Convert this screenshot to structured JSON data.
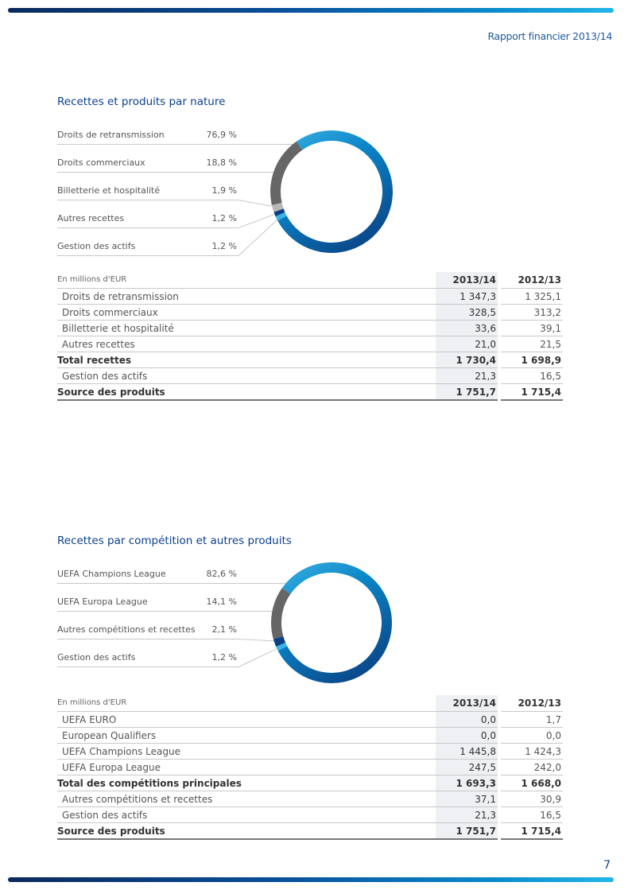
{
  "header": {
    "title": "Rapport financier 2013/14"
  },
  "page_number": "7",
  "colors": {
    "blue_light": "#3ab0e2",
    "blue_dark": "#0a4a8c",
    "grey_dark": "#666666",
    "grey_light": "#b8b8b8",
    "navy": "#0a3f85",
    "cyan": "#3ab4e6"
  },
  "section1": {
    "title": "Recettes et produits par nature",
    "chart": {
      "type": "pie",
      "style": "donut",
      "labels": [
        "Droits de retransmission",
        "Droits commerciaux",
        "Billetterie et hospitalité",
        "Autres recettes",
        "Gestion des actifs"
      ],
      "values": [
        76.9,
        18.8,
        1.9,
        1.2,
        1.2
      ],
      "value_labels": [
        "76,9 %",
        "18,8 %",
        "1,9 %",
        "1,2 %",
        "1,2 %"
      ],
      "colors": [
        "gradient-blue",
        "#666666",
        "#b8b8b8",
        "#0a3f85",
        "#3ab4e6"
      ]
    },
    "table": {
      "unit": "En millions d'EUR",
      "columns": [
        "2013/14",
        "2012/13"
      ],
      "rows": [
        {
          "label": "Droits de retransmission",
          "v1": "1 347,3",
          "v2": "1 325,1",
          "bold": false
        },
        {
          "label": "Droits commerciaux",
          "v1": "328,5",
          "v2": "313,2",
          "bold": false
        },
        {
          "label": "Billetterie et hospitalité",
          "v1": "33,6",
          "v2": "39,1",
          "bold": false
        },
        {
          "label": "Autres recettes",
          "v1": "21,0",
          "v2": "21,5",
          "bold": false
        },
        {
          "label": "Total recettes",
          "v1": "1 730,4",
          "v2": "1 698,9",
          "bold": true
        },
        {
          "label": "Gestion des actifs",
          "v1": "21,3",
          "v2": "16,5",
          "bold": false
        },
        {
          "label": "Source des produits",
          "v1": "1 751,7",
          "v2": "1 715,4",
          "bold": true
        }
      ]
    }
  },
  "section2": {
    "title": "Recettes par compétition et autres produits",
    "chart": {
      "type": "pie",
      "style": "donut",
      "labels": [
        "UEFA Champions League",
        "UEFA Europa League",
        "Autres compétitions et recettes",
        "Gestion des actifs"
      ],
      "values": [
        82.6,
        14.1,
        2.1,
        1.2
      ],
      "value_labels": [
        "82,6 %",
        "14,1 %",
        "2,1 %",
        "1,2 %"
      ],
      "colors": [
        "gradient-blue",
        "#666666",
        "#0a3f85",
        "#3ab4e6"
      ]
    },
    "table": {
      "unit": "En millions d'EUR",
      "columns": [
        "2013/14",
        "2012/13"
      ],
      "rows": [
        {
          "label": "UEFA EURO",
          "v1": "0,0",
          "v2": "1,7",
          "bold": false
        },
        {
          "label": "European Qualifiers",
          "v1": "0,0",
          "v2": "0,0",
          "bold": false
        },
        {
          "label": "UEFA Champions League",
          "v1": "1 445,8",
          "v2": "1 424,3",
          "bold": false
        },
        {
          "label": "UEFA Europa League",
          "v1": "247,5",
          "v2": "242,0",
          "bold": false
        },
        {
          "label": "Total des compétitions principales",
          "v1": "1 693,3",
          "v2": "1 668,0",
          "bold": true
        },
        {
          "label": "Autres compétitions et recettes",
          "v1": "37,1",
          "v2": "30,9",
          "bold": false
        },
        {
          "label": "Gestion des actifs",
          "v1": "21,3",
          "v2": "16,5",
          "bold": false
        },
        {
          "label": "Source des produits",
          "v1": "1 751,7",
          "v2": "1 715,4",
          "bold": true
        }
      ]
    }
  }
}
